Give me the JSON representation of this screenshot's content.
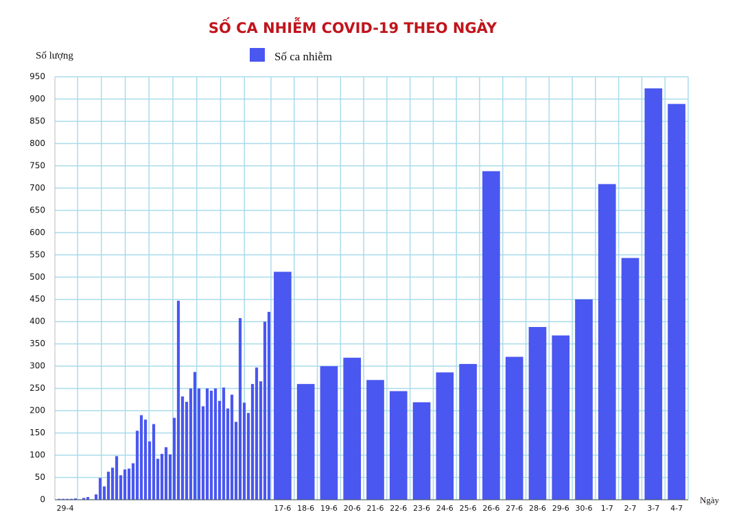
{
  "chart_data": {
    "type": "bar",
    "title": "SỐ CA NHIỄM COVID-19 THEO NGÀY",
    "y_label": "Số lượng",
    "x_label": "Ngày",
    "categories": [
      "29-4",
      null,
      null,
      null,
      null,
      null,
      null,
      null,
      null,
      null,
      null,
      null,
      null,
      null,
      null,
      null,
      null,
      null,
      null,
      null,
      null,
      null,
      null,
      null,
      null,
      null,
      null,
      null,
      null,
      null,
      null,
      null,
      null,
      null,
      null,
      null,
      null,
      null,
      null,
      null,
      null,
      null,
      null,
      null,
      null,
      null,
      null,
      null,
      null,
      null,
      null,
      null,
      "17-6",
      "18-6",
      "19-6",
      "20-6",
      "21-6",
      "22-6",
      "23-6",
      "24-6",
      "25-6",
      "26-6",
      "27-6",
      "28-6",
      "29-6",
      "30-6",
      "1-7",
      "2-7",
      "3-7",
      "4-7"
    ],
    "series": [
      {
        "name": "Số ca nhiễm",
        "color": "#4a57f0",
        "values": [
          2,
          2,
          2,
          2,
          3,
          1,
          4,
          6,
          1,
          12,
          49,
          30,
          63,
          72,
          98,
          55,
          68,
          70,
          82,
          155,
          190,
          180,
          131,
          170,
          92,
          103,
          118,
          102,
          184,
          447,
          232,
          220,
          250,
          287,
          250,
          210,
          250,
          245,
          250,
          222,
          252,
          205,
          236,
          175,
          408,
          218,
          195,
          260,
          297,
          266,
          400,
          422,
          512,
          260,
          300,
          319,
          269,
          244,
          219,
          286,
          305,
          738,
          321,
          388,
          369,
          450,
          709,
          543,
          924,
          889
        ]
      }
    ],
    "ylim": [
      0,
      950
    ],
    "yticks": [
      0,
      50,
      100,
      150,
      200,
      250,
      300,
      350,
      400,
      450,
      500,
      550,
      600,
      650,
      700,
      750,
      800,
      850,
      900,
      950
    ],
    "grid": true
  }
}
